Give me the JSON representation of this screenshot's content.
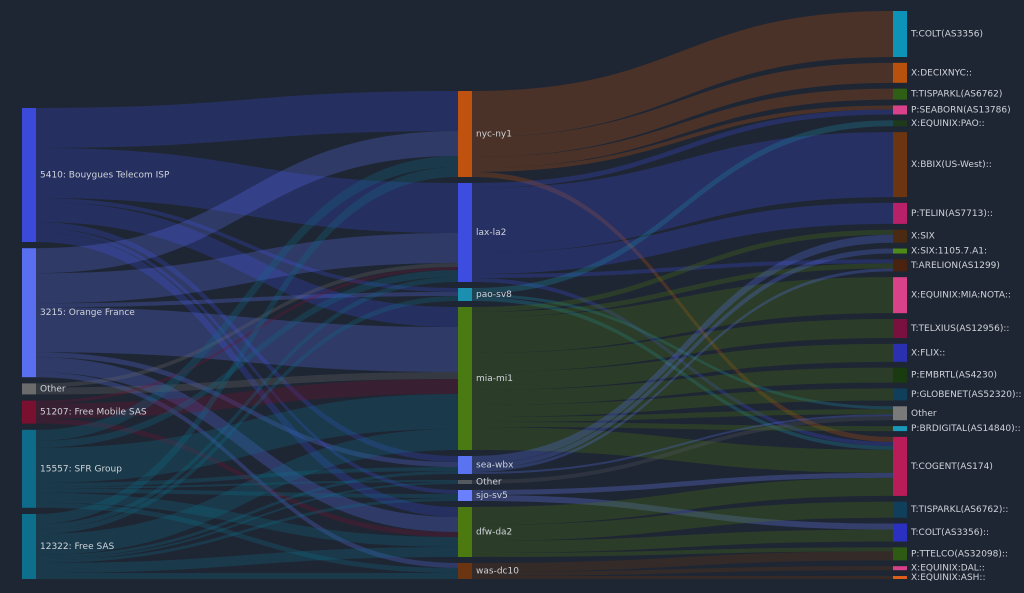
{
  "chart_data": {
    "type": "sankey",
    "columns": [
      {
        "nodes": [
          {
            "name": "5410: Bouygues Telecom ISP",
            "color": "#3b4ad8",
            "flows": [
              40,
              50,
              4,
              20,
              6,
              null,
              4,
              10,
              null
            ]
          },
          {
            "name": "3215: Orange France",
            "color": "#5a6ff0",
            "flows": [
              25,
              30,
              4,
              45,
              5,
              null,
              null,
              15,
              5
            ]
          },
          {
            "name": "Other",
            "color": "#6b6b6b",
            "flows": [
              null,
              4,
              null,
              7,
              null,
              null,
              null,
              null,
              null
            ]
          },
          {
            "name": "51207: Free Mobile SAS",
            "color": "#7a1030",
            "flows": [
              null,
              3,
              null,
              15,
              null,
              null,
              null,
              5,
              null
            ]
          },
          {
            "name": "15557: SFR Group",
            "color": "#0e6b8a",
            "flows": [
              11,
              7,
              null,
              35,
              4,
              2,
              4,
              10,
              5
            ]
          },
          {
            "name": "12322: Free SAS",
            "color": "#0e6f8c",
            "flows": [
              10,
              5,
              5,
              21,
              3,
              2,
              3,
              10,
              6
            ]
          }
        ]
      },
      {
        "nodes": [
          {
            "name": "nyc-ny1",
            "color": "#c0520f",
            "flows": [
              46,
              20,
              11,
              4,
              null,
              null,
              null,
              null,
              null,
              null,
              null,
              null,
              null,
              null,
              null,
              null,
              null,
              5,
              null,
              null,
              null,
              null,
              null
            ]
          },
          {
            "name": "lax-la2",
            "color": "#3d4de0",
            "flows": [
              null,
              null,
              null,
              5,
              null,
              65,
              21,
              null,
              null,
              4,
              null,
              null,
              null,
              null,
              null,
              null,
              null,
              4,
              null,
              null,
              null,
              null,
              null
            ]
          },
          {
            "name": "pao-sv8",
            "color": "#1a8fb0",
            "flows": [
              null,
              null,
              null,
              null,
              6,
              null,
              null,
              null,
              null,
              null,
              null,
              null,
              null,
              null,
              null,
              3,
              null,
              4,
              null,
              null,
              null,
              null,
              null
            ]
          },
          {
            "name": "mia-mi1",
            "color": "#4a7a12",
            "flows": [
              null,
              null,
              null,
              null,
              null,
              null,
              null,
              5,
              null,
              5,
              36,
              19,
              18,
              15,
              12,
              5,
              5,
              23,
              null,
              null,
              null,
              null,
              null
            ]
          },
          {
            "name": "sea-wbx",
            "color": "#5a73f0",
            "flows": [
              null,
              null,
              null,
              null,
              null,
              null,
              null,
              8,
              5,
              3,
              null,
              null,
              null,
              null,
              null,
              2,
              null,
              null,
              null,
              null,
              null,
              null,
              null
            ]
          },
          {
            "name": "Other",
            "color": "#555a60",
            "flows": [
              null,
              null,
              null,
              null,
              null,
              null,
              null,
              null,
              null,
              null,
              null,
              null,
              null,
              null,
              null,
              4,
              null,
              null,
              null,
              null,
              null,
              null,
              null
            ]
          },
          {
            "name": "sjo-sv5",
            "color": "#6a80ff",
            "flows": [
              null,
              null,
              null,
              null,
              null,
              null,
              null,
              null,
              null,
              null,
              null,
              null,
              null,
              null,
              null,
              null,
              null,
              5,
              null,
              6,
              null,
              null,
              null
            ]
          },
          {
            "name": "dfw-da2",
            "color": "#4c7a10",
            "flows": [
              null,
              null,
              null,
              null,
              null,
              null,
              null,
              null,
              null,
              null,
              null,
              null,
              null,
              null,
              null,
              null,
              null,
              18,
              16,
              12,
              4,
              null,
              null
            ]
          },
          {
            "name": "was-dc10",
            "color": "#6a3510",
            "flows": [
              null,
              null,
              null,
              null,
              null,
              null,
              null,
              null,
              null,
              null,
              null,
              null,
              null,
              null,
              null,
              null,
              null,
              null,
              null,
              null,
              9,
              4,
              3
            ]
          }
        ]
      },
      {
        "nodes": [
          {
            "name": "T:COLT(AS3356)",
            "color": "#0e93b8"
          },
          {
            "name": "X:DECIXNYC::",
            "color": "#b8500e"
          },
          {
            "name": "T:TISPARKL(AS6762)",
            "color": "#2f5f14"
          },
          {
            "name": "P:SEABORN(AS13786)",
            "color": "#d9428a"
          },
          {
            "name": "X:EQUINIX:PAO::",
            "color": "#1f3a1a"
          },
          {
            "name": "X:BBIX(US-West)::",
            "color": "#6a3510"
          },
          {
            "name": "P:TELIN(AS7713)::",
            "color": "#b8206a"
          },
          {
            "name": "X:SIX",
            "color": "#4a2a10"
          },
          {
            "name": "X:SIX:1105.7.A1:",
            "color": "#4e8a1a"
          },
          {
            "name": "T:ARELION(AS1299)",
            "color": "#4a2210"
          },
          {
            "name": "X:EQUINIX:MIA:NOTA::",
            "color": "#d9428a"
          },
          {
            "name": "T:TELXIUS(AS12956)::",
            "color": "#7a1040"
          },
          {
            "name": "X:FLIX::",
            "color": "#2a30b0"
          },
          {
            "name": "P:EMBRTL(AS4230)",
            "color": "#1a3a10"
          },
          {
            "name": "P:GLOBENET(AS52320)::",
            "color": "#0f3f5a"
          },
          {
            "name": "Other",
            "color": "#7a7a7a"
          },
          {
            "name": "P:BRDIGITAL(AS14840)::",
            "color": "#1a9ab8"
          },
          {
            "name": "T:COGENT(AS174)",
            "color": "#b81d5a"
          },
          {
            "name": "T:TISPARKL(AS6762)::",
            "color": "#0f3f5a"
          },
          {
            "name": "T:COLT(AS3356)::",
            "color": "#2a30c0"
          },
          {
            "name": "P:TTELCO(AS32098)::",
            "color": "#2f5a14"
          },
          {
            "name": "X:EQUINIX:DAL::",
            "color": "#d9428a"
          },
          {
            "name": "X:EQUINIX:ASH::",
            "color": "#d9601a"
          }
        ]
      }
    ]
  }
}
